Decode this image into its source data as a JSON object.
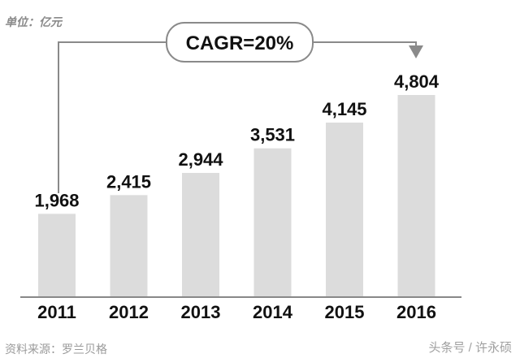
{
  "chart_data": {
    "type": "bar",
    "title": "",
    "unit_label": "单位：亿元",
    "categories": [
      "2011",
      "2012",
      "2013",
      "2014",
      "2015",
      "2016"
    ],
    "values": [
      1968,
      2415,
      2944,
      3531,
      4145,
      4804
    ],
    "value_labels": [
      "1,968",
      "2,415",
      "2,944",
      "3,531",
      "4,145",
      "4,804"
    ],
    "annotation": "CAGR=20%",
    "xlabel": "",
    "ylabel": "",
    "ylim": [
      0,
      4804
    ],
    "grid": false,
    "bar_color": "#dcdcdc"
  },
  "source": "资料来源：罗兰贝格",
  "credit": "头条号 / 许永硕"
}
